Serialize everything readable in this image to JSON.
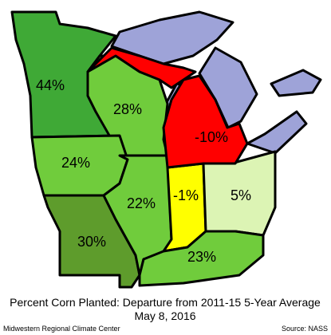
{
  "title": "Percent Corn Planted:  Departure from 2011-15 5-Year Average",
  "date": "May 8, 2016",
  "credit": "Midwestern Regional Climate Center",
  "source": "Source: NASS",
  "lake_color": "#9ea3d8",
  "states": [
    {
      "label": "44%",
      "color": "#3fa936"
    },
    {
      "label": "28%",
      "color": "#70cc3c"
    },
    {
      "label": "24%",
      "color": "#70cc3c"
    },
    {
      "label": "30%",
      "color": "#5e9c2c"
    },
    {
      "label": "22%",
      "color": "#70cc3c"
    },
    {
      "label": "-1%",
      "color": "#ffff00"
    },
    {
      "label": "5%",
      "color": "#dcf4b4"
    },
    {
      "label": "23%",
      "color": "#70cc3c"
    },
    {
      "label": "-10%",
      "color": "#ff0000"
    }
  ]
}
